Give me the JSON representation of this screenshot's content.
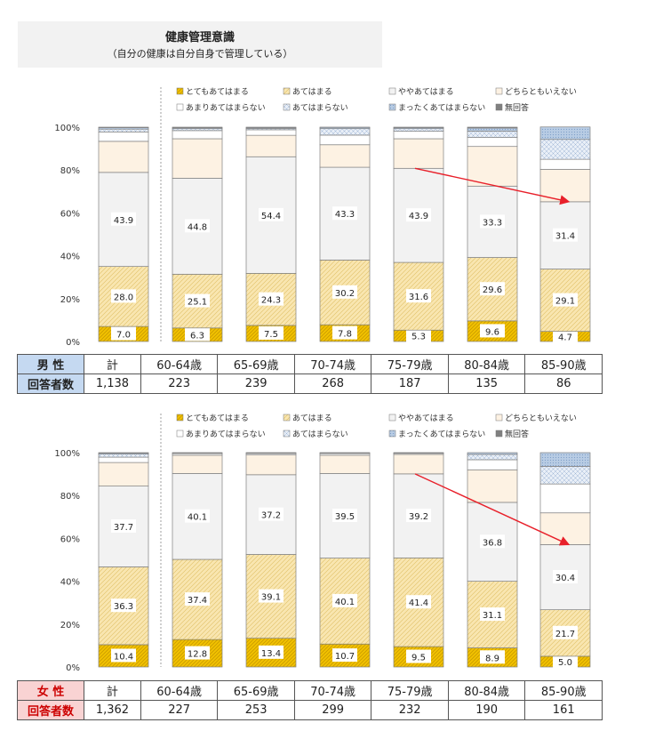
{
  "title": {
    "main": "健康管理意識",
    "sub": "（自分の健康は自分自身で管理している）"
  },
  "legend": [
    {
      "label": "とてもあてはまる",
      "color": "#f2c200",
      "hatch": "dense"
    },
    {
      "label": "あてはまる",
      "color": "#f7e3a6",
      "hatch": "light"
    },
    {
      "label": "ややあてはまる",
      "color": "#f2f2f2",
      "hatch": "none"
    },
    {
      "label": "どちらともいえない",
      "color": "#fdf2e3",
      "hatch": "none"
    },
    {
      "label": "あまりあてはまらない",
      "color": "#ffffff",
      "hatch": "none"
    },
    {
      "label": "あてはまらない",
      "color": "#dbe5f1",
      "hatch": "cross"
    },
    {
      "label": "まったくあてはまらない",
      "color": "#b8cce4",
      "hatch": "dots"
    },
    {
      "label": "無回答",
      "color": "#808080",
      "hatch": "none"
    }
  ],
  "yticks": [
    "0%",
    "20%",
    "40%",
    "60%",
    "80%",
    "100%"
  ],
  "male": {
    "header": "男 性",
    "count_label": "回答者数",
    "categories": [
      "計",
      "60-64歳",
      "65-69歳",
      "70-74歳",
      "75-79歳",
      "80-84歳",
      "85-90歳"
    ],
    "counts": [
      "1,138",
      "223",
      "239",
      "268",
      "187",
      "135",
      "86"
    ]
  },
  "female": {
    "header": "女 性",
    "count_label": "回答者数",
    "categories": [
      "計",
      "60-64歳",
      "65-69歳",
      "70-74歳",
      "75-79歳",
      "80-84歳",
      "85-90歳"
    ],
    "counts": [
      "1,362",
      "227",
      "253",
      "299",
      "232",
      "190",
      "161"
    ]
  },
  "chart_data": [
    {
      "type": "bar",
      "stacked": true,
      "title": "男性",
      "categories": [
        "計",
        "60-64歳",
        "65-69歳",
        "70-74歳",
        "75-79歳",
        "80-84歳",
        "85-90歳"
      ],
      "ylim": [
        0,
        100
      ],
      "series": [
        {
          "name": "とてもあてはまる",
          "values": [
            7.0,
            6.3,
            7.5,
            7.8,
            5.3,
            9.6,
            4.7
          ],
          "labels": [
            "7.0",
            "6.3",
            "7.5",
            "7.8",
            "5.3",
            "9.6",
            "4.7"
          ]
        },
        {
          "name": "あてはまる",
          "values": [
            28.0,
            25.1,
            24.3,
            30.2,
            31.6,
            29.6,
            29.1
          ],
          "labels": [
            "28.0",
            "25.1",
            "24.3",
            "30.2",
            "31.6",
            "29.6",
            "29.1"
          ]
        },
        {
          "name": "ややあてはまる",
          "values": [
            43.9,
            44.8,
            54.4,
            43.3,
            43.9,
            33.3,
            31.4
          ],
          "labels": [
            "43.9",
            "44.8",
            "54.4",
            "43.3",
            "43.9",
            "33.3",
            "31.4"
          ]
        },
        {
          "name": "どちらともいえない",
          "values": [
            14.5,
            18.4,
            10.0,
            10.5,
            13.8,
            18.5,
            15.1
          ]
        },
        {
          "name": "あまりあてはまらない",
          "values": [
            4.4,
            3.8,
            2.6,
            4.5,
            3.5,
            4.2,
            4.7
          ]
        },
        {
          "name": "あてはまらない",
          "values": [
            1.3,
            0.9,
            0.6,
            3.0,
            1.2,
            3.0,
            9.3
          ]
        },
        {
          "name": "まったくあてはまらない",
          "values": [
            0.7,
            0.4,
            0.4,
            0.6,
            0.5,
            1.4,
            5.8
          ]
        },
        {
          "name": "無回答",
          "values": [
            0.2,
            0.3,
            0.2,
            0.1,
            0.2,
            0.4,
            0.0
          ]
        }
      ],
      "arrow": {
        "from": "75-79歳",
        "to": "85-90歳"
      }
    },
    {
      "type": "bar",
      "stacked": true,
      "title": "女性",
      "categories": [
        "計",
        "60-64歳",
        "65-69歳",
        "70-74歳",
        "75-79歳",
        "80-84歳",
        "85-90歳"
      ],
      "ylim": [
        0,
        100
      ],
      "series": [
        {
          "name": "とてもあてはまる",
          "values": [
            10.4,
            12.8,
            13.4,
            10.7,
            9.5,
            8.9,
            5.0
          ],
          "labels": [
            "10.4",
            "12.8",
            "13.4",
            "10.7",
            "9.5",
            "8.9",
            "5.0"
          ]
        },
        {
          "name": "あてはまる",
          "values": [
            36.3,
            37.4,
            39.1,
            40.1,
            41.4,
            31.1,
            21.7
          ],
          "labels": [
            "36.3",
            "37.4",
            "39.1",
            "40.1",
            "41.4",
            "31.1",
            "21.7"
          ]
        },
        {
          "name": "ややあてはまる",
          "values": [
            37.7,
            40.1,
            37.2,
            39.5,
            39.2,
            36.8,
            30.4
          ],
          "labels": [
            "37.7",
            "40.1",
            "37.2",
            "39.5",
            "39.2",
            "36.8",
            "30.4"
          ]
        },
        {
          "name": "どちらともいえない",
          "values": [
            11.0,
            8.5,
            9.2,
            8.5,
            9.1,
            15.2,
            14.8
          ]
        },
        {
          "name": "あまりあてはまらない",
          "values": [
            2.5,
            0.8,
            0.7,
            0.8,
            0.5,
            4.7,
            13.5
          ]
        },
        {
          "name": "あてはまらない",
          "values": [
            1.4,
            0.3,
            0.3,
            0.3,
            0.2,
            2.5,
            8.2
          ]
        },
        {
          "name": "まったくあてはまらない",
          "values": [
            0.5,
            0.1,
            0.1,
            0.1,
            0.1,
            0.8,
            6.4
          ]
        },
        {
          "name": "無回答",
          "values": [
            0.2,
            0.0,
            0.0,
            0.0,
            0.0,
            0.0,
            0.0
          ]
        }
      ],
      "arrow": {
        "from": "75-79歳",
        "to": "85-90歳"
      }
    }
  ]
}
